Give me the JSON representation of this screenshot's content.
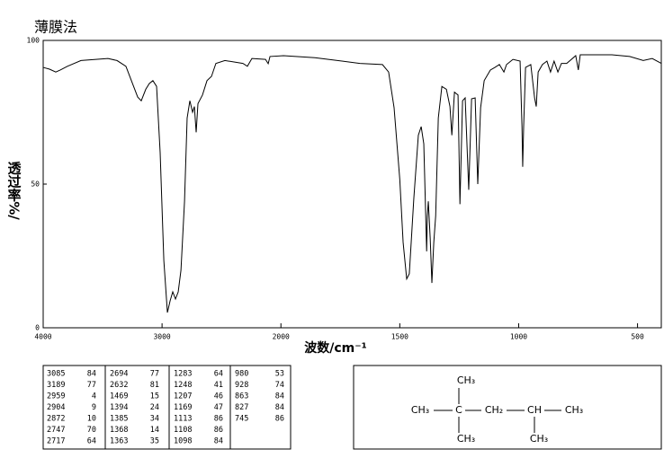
{
  "chart_data": {
    "type": "line",
    "title": "薄膜法",
    "x_label": "波数/cm⁻¹",
    "y_label": "透过率%/",
    "color": "#000000",
    "xlim": [
      4000,
      400
    ],
    "xticks": [
      4000,
      3000,
      2000,
      1500,
      1000,
      500
    ],
    "ylim": [
      0,
      100
    ],
    "yticks": [
      0,
      50,
      100
    ],
    "x": [
      4000,
      3947,
      3894,
      3856,
      3796,
      3682,
      3455,
      3379,
      3304,
      3243,
      3205,
      3175,
      3137,
      3107,
      3077,
      3046,
      3016,
      2985,
      2955,
      2932,
      2910,
      2887,
      2864,
      2841,
      2811,
      2789,
      2766,
      2743,
      2728,
      2713,
      2698,
      2660,
      2622,
      2584,
      2547,
      2471,
      2320,
      2282,
      2244,
      2130,
      2107,
      2092,
      1989,
      1857,
      1668,
      1573,
      1547,
      1524,
      1500,
      1486,
      1471,
      1460,
      1441,
      1422,
      1410,
      1399,
      1391,
      1387,
      1384,
      1380,
      1372,
      1365,
      1357,
      1349,
      1338,
      1323,
      1304,
      1289,
      1281,
      1270,
      1255,
      1247,
      1236,
      1225,
      1210,
      1198,
      1183,
      1172,
      1160,
      1145,
      1119,
      1100,
      1081,
      1062,
      1051,
      1024,
      994,
      986,
      983,
      979,
      971,
      949,
      933,
      926,
      918,
      900,
      881,
      866,
      851,
      835,
      820,
      798,
      760,
      749,
      741,
      608,
      533,
      476,
      438,
      400
    ],
    "values": [
      90.6,
      90,
      89,
      89.7,
      91,
      93,
      93.7,
      93,
      91,
      84.4,
      80.3,
      79,
      83,
      85,
      86,
      84,
      61,
      23.4,
      5.3,
      9.4,
      12.5,
      10,
      12.5,
      20,
      44,
      73,
      79,
      75,
      77,
      68,
      78,
      81,
      86,
      87.5,
      92,
      93,
      92,
      91,
      93.7,
      93.4,
      91.9,
      94.4,
      94.7,
      94,
      92,
      91.6,
      89,
      76.6,
      51.6,
      29.7,
      17,
      18.8,
      45,
      67,
      70,
      64,
      39,
      26.6,
      39,
      44,
      31,
      15.6,
      29.7,
      39,
      73,
      84,
      83,
      77,
      67,
      82,
      81,
      43,
      79,
      80,
      48,
      79.7,
      80,
      50,
      76.6,
      86,
      89.7,
      90.6,
      91.6,
      89,
      91.6,
      93.4,
      92.8,
      70,
      56,
      70,
      90.6,
      91.6,
      80,
      77,
      89,
      91.6,
      92.8,
      89,
      92.8,
      89,
      92,
      92,
      94.7,
      89.7,
      95,
      95,
      94.4,
      93,
      93.7,
      92
    ]
  },
  "peak_table": [
    [
      [
        3085,
        84
      ],
      [
        3189,
        77
      ],
      [
        2959,
        4
      ],
      [
        2904,
        9
      ],
      [
        2872,
        10
      ],
      [
        2747,
        70
      ],
      [
        2717,
        64
      ]
    ],
    [
      [
        2694,
        77
      ],
      [
        2632,
        81
      ],
      [
        1469,
        15
      ],
      [
        1394,
        24
      ],
      [
        1385,
        34
      ],
      [
        1368,
        14
      ],
      [
        1363,
        35
      ]
    ],
    [
      [
        1283,
        64
      ],
      [
        1248,
        41
      ],
      [
        1207,
        46
      ],
      [
        1169,
        47
      ],
      [
        1113,
        86
      ],
      [
        1108,
        86
      ],
      [
        1098,
        84
      ]
    ],
    [
      [
        980,
        53
      ],
      [
        928,
        74
      ],
      [
        863,
        84
      ],
      [
        827,
        84
      ],
      [
        745,
        86
      ]
    ]
  ],
  "structure": {
    "top": "CH₃",
    "row": [
      "CH₃",
      "C",
      "CH₂",
      "CH",
      "CH₃"
    ],
    "bottom": [
      "CH₃",
      "CH₃"
    ]
  }
}
